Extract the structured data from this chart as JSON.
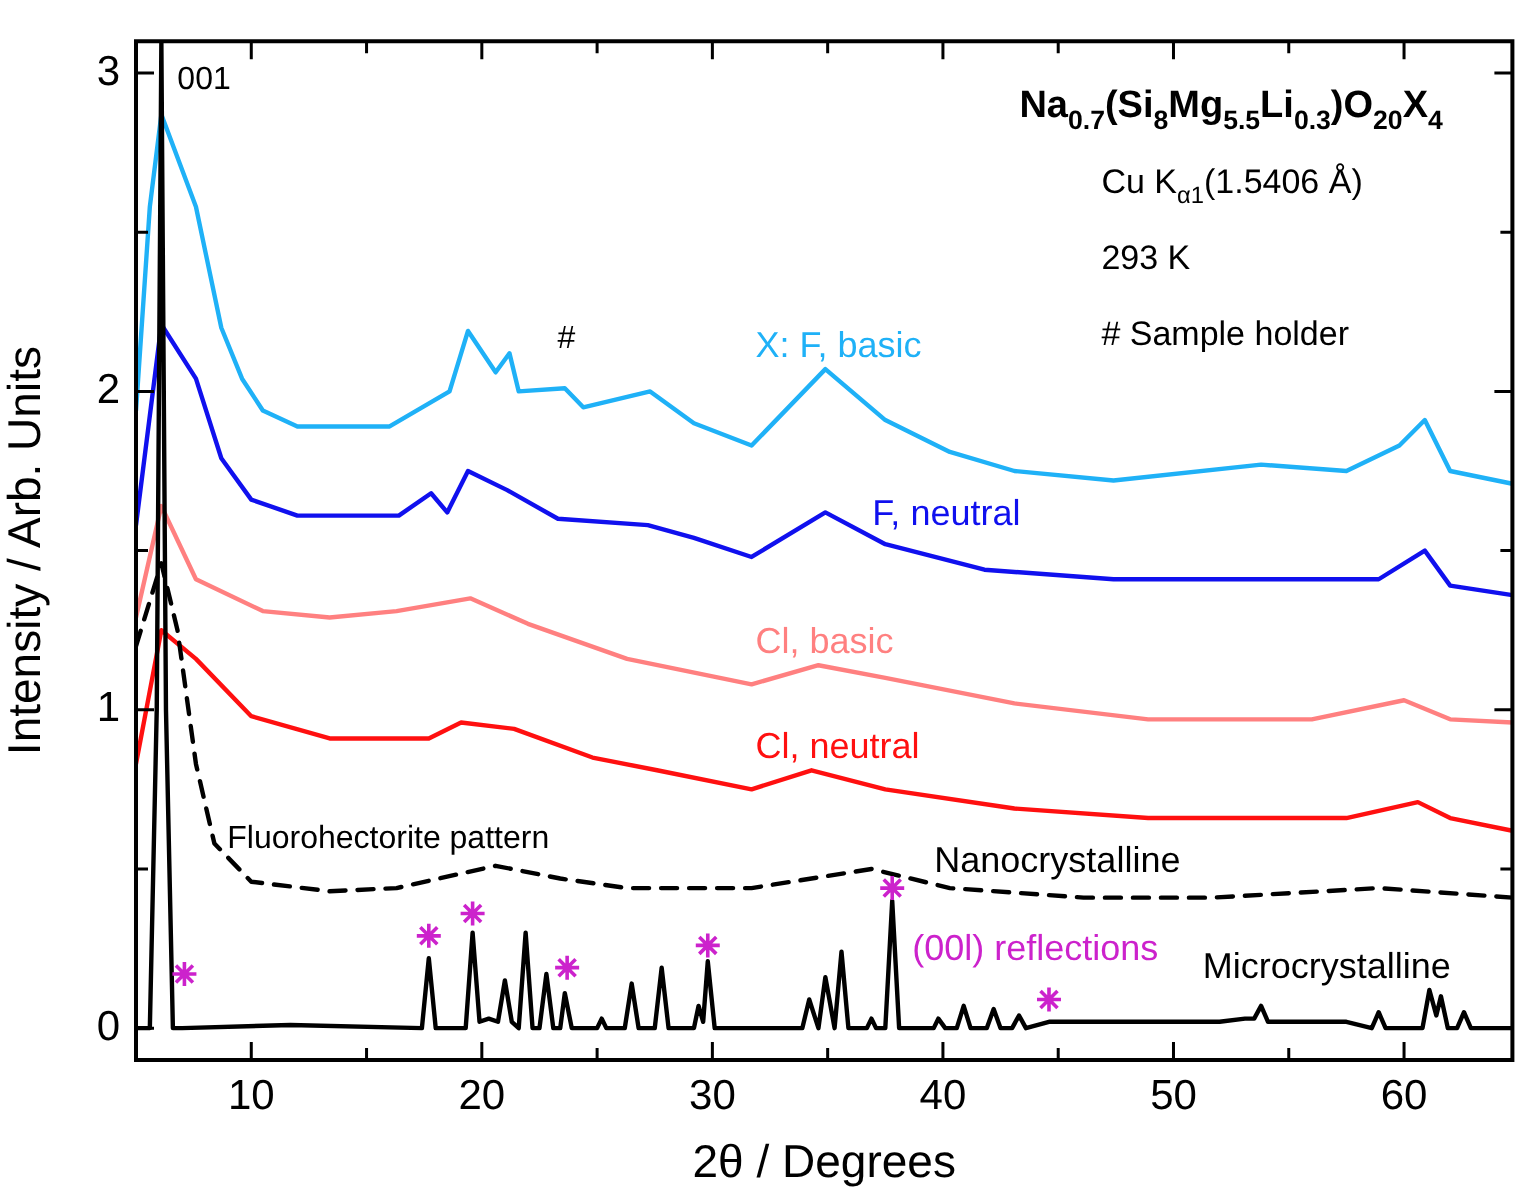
{
  "chart_data": {
    "type": "line",
    "title": "Na$_{0.7}$(Si$_{8}$Mg$_{5.5}$Li$_{0.3}$)O$_{20}$X$_{4}$",
    "xlabel": "2θ / Degrees",
    "ylabel": "Intensity / Arb. Units",
    "xlim": [
      5,
      64.7
    ],
    "ylim": [
      -0.1,
      3.1
    ],
    "xticks": [
      10,
      {
        "value": 15,
        "label": null
      },
      20,
      {
        "value": 25,
        "label": null
      },
      30,
      {
        "value": 35,
        "label": null
      },
      40,
      {
        "value": 45,
        "label": null
      },
      50,
      {
        "value": 55,
        "label": null
      },
      60
    ],
    "yticks": [
      0,
      {
        "value": 0.5,
        "label": null
      },
      1,
      {
        "value": 1.5,
        "label": null
      },
      2,
      {
        "value": 2.5,
        "label": null
      },
      3
    ],
    "marker": "none",
    "legend": false,
    "grid": false,
    "annotations": [
      "Cu K$_{α1}$(1.5406 Å)",
      "293 K",
      "# Sample holder",
      {
        "text": "001",
        "x": 6.1,
        "y": 3.1
      },
      {
        "text": "#",
        "x": 23.6,
        "y": 2.01
      },
      {
        "text": "Fluorohectorite pattern",
        "x": 16.3,
        "y": 0.44
      }
    ],
    "series": [
      {
        "name": "X: F, basic",
        "color": "#1fb1f7",
        "x": [
          5,
          5.6,
          6.1,
          7.6,
          8.7,
          9.6,
          10.5,
          12,
          16,
          18.6,
          19.4,
          20.6,
          21.2,
          21.6,
          23.6,
          24.4,
          27.3,
          29.2,
          31.7,
          34.9,
          37.5,
          40.3,
          43.1,
          47.4,
          53.8,
          57.5,
          59.8,
          60.9,
          62,
          64.7
        ],
        "values": [
          1.94,
          2.58,
          2.87,
          2.58,
          2.2,
          2.04,
          1.94,
          1.89,
          1.89,
          2.0,
          2.19,
          2.06,
          2.12,
          2.0,
          2.01,
          1.95,
          2.0,
          1.9,
          1.83,
          2.07,
          1.91,
          1.81,
          1.75,
          1.72,
          1.77,
          1.75,
          1.83,
          1.91,
          1.75,
          1.71
        ]
      },
      {
        "name": "F, neutral",
        "color": "#1010ee",
        "x": [
          5,
          6.1,
          7.6,
          8.7,
          10,
          12,
          16.4,
          17.8,
          18.5,
          19.4,
          21.1,
          23.3,
          27.2,
          29.2,
          31.7,
          34.9,
          37.5,
          41.8,
          47.4,
          53.4,
          58.9,
          60.9,
          62,
          64.7
        ],
        "values": [
          1.58,
          2.21,
          2.04,
          1.79,
          1.66,
          1.61,
          1.61,
          1.68,
          1.62,
          1.75,
          1.69,
          1.6,
          1.58,
          1.54,
          1.48,
          1.62,
          1.52,
          1.44,
          1.41,
          1.41,
          1.41,
          1.5,
          1.39,
          1.36
        ]
      },
      {
        "name": "Cl, basic",
        "color": "#ff8080",
        "x": [
          5,
          6.1,
          7.6,
          10.5,
          13.4,
          16.3,
          19.5,
          22,
          26.3,
          31.7,
          34.6,
          37.5,
          43.1,
          48.9,
          56,
          60,
          62,
          64.7
        ],
        "values": [
          1.29,
          1.64,
          1.41,
          1.31,
          1.29,
          1.31,
          1.35,
          1.27,
          1.16,
          1.08,
          1.14,
          1.1,
          1.02,
          0.97,
          0.97,
          1.03,
          0.97,
          0.96
        ]
      },
      {
        "name": "Cl, neutral",
        "color": "#ff1010",
        "x": [
          5,
          6.1,
          7.6,
          10,
          13.4,
          17.7,
          19.1,
          21.4,
          24.8,
          27.6,
          31.7,
          34.3,
          37.5,
          43.1,
          48.9,
          57.5,
          60.6,
          62,
          64.7
        ],
        "values": [
          0.83,
          1.25,
          1.16,
          0.98,
          0.91,
          0.91,
          0.96,
          0.94,
          0.85,
          0.81,
          0.75,
          0.81,
          0.75,
          0.69,
          0.66,
          0.66,
          0.71,
          0.66,
          0.62
        ]
      },
      {
        "name": "Nanocrystalline",
        "color": "#000000",
        "line_style": "dashed",
        "x": [
          5,
          6.1,
          6.8,
          7.6,
          8.4,
          10,
          13.4,
          16.3,
          20.6,
          23.4,
          26.3,
          31.7,
          36.9,
          40.3,
          46.1,
          51.7,
          58.9,
          64.7
        ],
        "values": [
          1.2,
          1.46,
          1.25,
          0.83,
          0.58,
          0.46,
          0.43,
          0.44,
          0.51,
          0.47,
          0.44,
          0.44,
          0.5,
          0.44,
          0.41,
          0.41,
          0.44,
          0.41
        ]
      },
      {
        "name": "Microcrystalline",
        "color": "#000000",
        "x": [
          5,
          5.6,
          5.9,
          6.1,
          6.3,
          6.6,
          7,
          11.7,
          17.4,
          17.7,
          18,
          19.3,
          19.6,
          19.9,
          20.3,
          20.7,
          21,
          21.3,
          21.6,
          21.9,
          22.2,
          22.5,
          22.8,
          23.1,
          23.4,
          23.6,
          23.9,
          25,
          25.2,
          25.4,
          26.2,
          26.5,
          26.8,
          27.5,
          27.8,
          28.1,
          29.2,
          29.4,
          29.6,
          29.8,
          30.1,
          31,
          33.9,
          34.2,
          34.6,
          34.9,
          35.3,
          35.6,
          35.9,
          36.7,
          36.9,
          37.1,
          37.5,
          37.8,
          38.1,
          39.6,
          39.8,
          40.1,
          40.6,
          40.9,
          41.2,
          41.9,
          42.2,
          42.5,
          43,
          43.3,
          43.6,
          44.6,
          46.9,
          48,
          49,
          52,
          53.1,
          53.5,
          53.8,
          54.1,
          55,
          57.5,
          58.6,
          58.9,
          59.2,
          60.8,
          61.1,
          61.4,
          61.6,
          61.9,
          62.3,
          62.6,
          62.9,
          64.7
        ],
        "values": [
          0,
          0,
          1.0,
          3.1,
          1.0,
          0,
          0,
          0.01,
          0,
          0.22,
          0,
          0,
          0.3,
          0.02,
          0.03,
          0.02,
          0.15,
          0.02,
          0,
          0.3,
          0,
          0,
          0.17,
          0,
          0,
          0.11,
          0,
          0,
          0.03,
          0,
          0,
          0.14,
          0,
          0,
          0.19,
          0,
          0,
          0.07,
          0.02,
          0.21,
          0,
          0,
          0,
          0.09,
          0,
          0.16,
          0,
          0.24,
          0,
          0,
          0.03,
          0,
          0,
          0.4,
          0,
          0,
          0.03,
          0,
          0,
          0.07,
          0,
          0,
          0.06,
          0,
          0,
          0.04,
          0,
          0.02,
          0.02,
          0.02,
          0.02,
          0.02,
          0.03,
          0.03,
          0.07,
          0.02,
          0.02,
          0.02,
          0,
          0.05,
          0,
          0,
          0.12,
          0.04,
          0.1,
          0,
          0,
          0.05,
          0,
          0
        ]
      },
      {
        "name": "(00l) reflections",
        "type": "scatter",
        "marker": "cross",
        "color": "#cc22cc",
        "x": [
          7.1,
          17.7,
          19.6,
          23.7,
          29.8,
          37.8,
          44.6
        ],
        "values": [
          0.17,
          0.29,
          0.36,
          0.19,
          0.26,
          0.44,
          0.09
        ]
      }
    ]
  }
}
